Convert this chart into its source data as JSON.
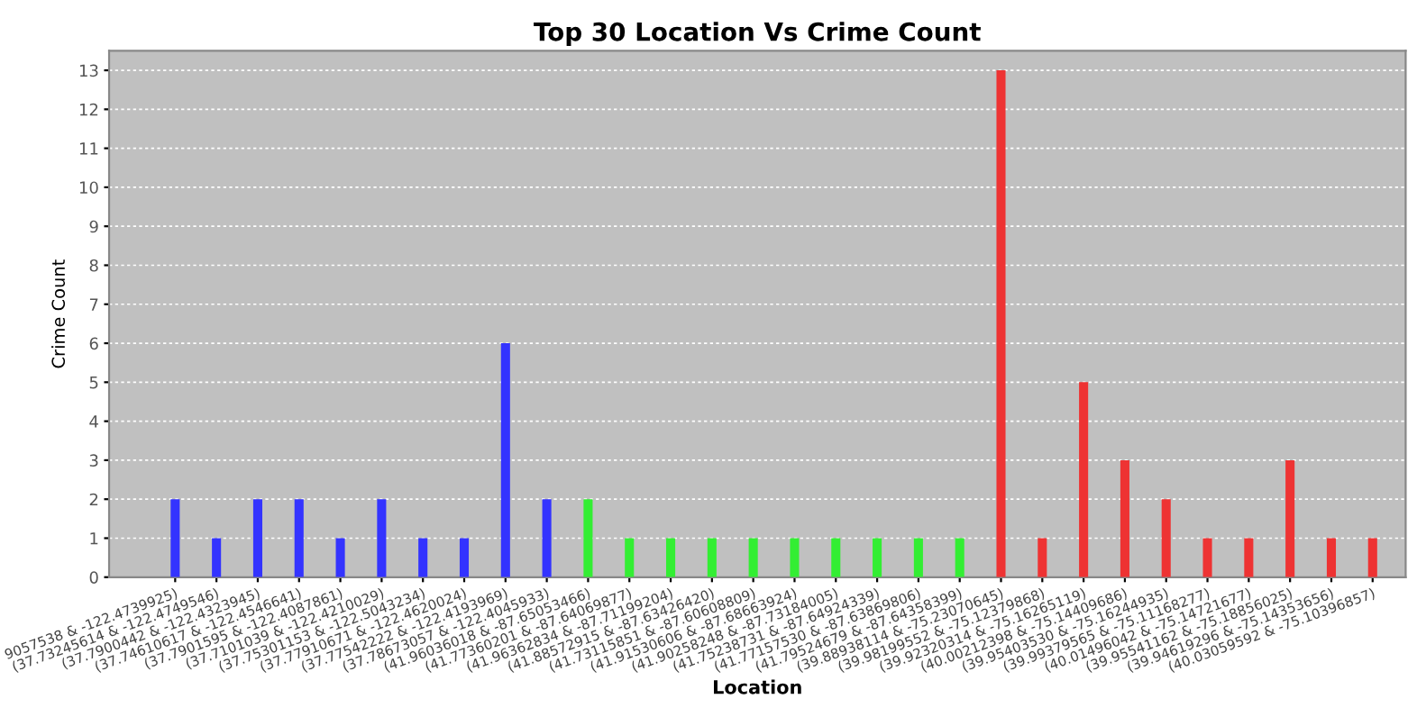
{
  "chart_data": {
    "type": "bar",
    "title": "Top 30 Location Vs Crime Count",
    "xlabel": "Location",
    "ylabel": "Crime Count",
    "categories": [
      "9057538 & -122.4739925)",
      "(37.73245614 & -122.4749546)",
      "(37.7900442 & -122.4323945)",
      "(37.74610617 & -122.4546641)",
      "(37.7901595 & -122.4087861)",
      "(37.7101039 & -122.4210029)",
      "(37.75301153 & -122.5043234)",
      "(37.77910671 & -122.4620024)",
      "(37.77542222 & -122.4193969)",
      "(37.78673057 & -122.4045933)",
      "(41.96036018 & -87.65053466)",
      "(41.77360201 & -87.64069877)",
      "(41.96362834 & -87.71199204)",
      "(41.88572915 & -87.63426420)",
      "(41.73115851 & -87.60608809)",
      "(41.91530606 & -87.68663924)",
      "(41.90258248 & -87.73184005)",
      "(41.75238731 & -87.64924339)",
      "(41.77157530 & -87.63869806)",
      "(41.79524679 & -87.64358399)",
      "(39.88938114 & -75.23070645)",
      "(39.98199552 & -75.12379868)",
      "(39.92320314 & -75.16265119)",
      "(40.00212398 & -75.14409686)",
      "(39.95403530 & -75.16244935)",
      "(39.99379565 & -75.11168277)",
      "(40.01496042 & -75.14721677)",
      "(39.95541162 & -75.18856025)",
      "(39.94619296 & -75.14353656)",
      "(40.03059592 & -75.10396857)"
    ],
    "values": [
      2,
      1,
      2,
      2,
      1,
      2,
      1,
      1,
      6,
      2,
      2,
      1,
      1,
      1,
      1,
      1,
      1,
      1,
      1,
      1,
      13,
      1,
      5,
      3,
      2,
      1,
      1,
      3,
      1,
      1
    ],
    "colors": [
      "#3333ff",
      "#3333ff",
      "#3333ff",
      "#3333ff",
      "#3333ff",
      "#3333ff",
      "#3333ff",
      "#3333ff",
      "#3333ff",
      "#3333ff",
      "#33ee33",
      "#33ee33",
      "#33ee33",
      "#33ee33",
      "#33ee33",
      "#33ee33",
      "#33ee33",
      "#33ee33",
      "#33ee33",
      "#33ee33",
      "#ee3333",
      "#ee3333",
      "#ee3333",
      "#ee3333",
      "#ee3333",
      "#ee3333",
      "#ee3333",
      "#ee3333",
      "#ee3333",
      "#ee3333"
    ],
    "ylim": [
      0,
      13.5
    ],
    "yticks": [
      0,
      1,
      2,
      3,
      4,
      5,
      6,
      7,
      8,
      9,
      10,
      11,
      12,
      13
    ],
    "grid": "y",
    "legend": false
  }
}
